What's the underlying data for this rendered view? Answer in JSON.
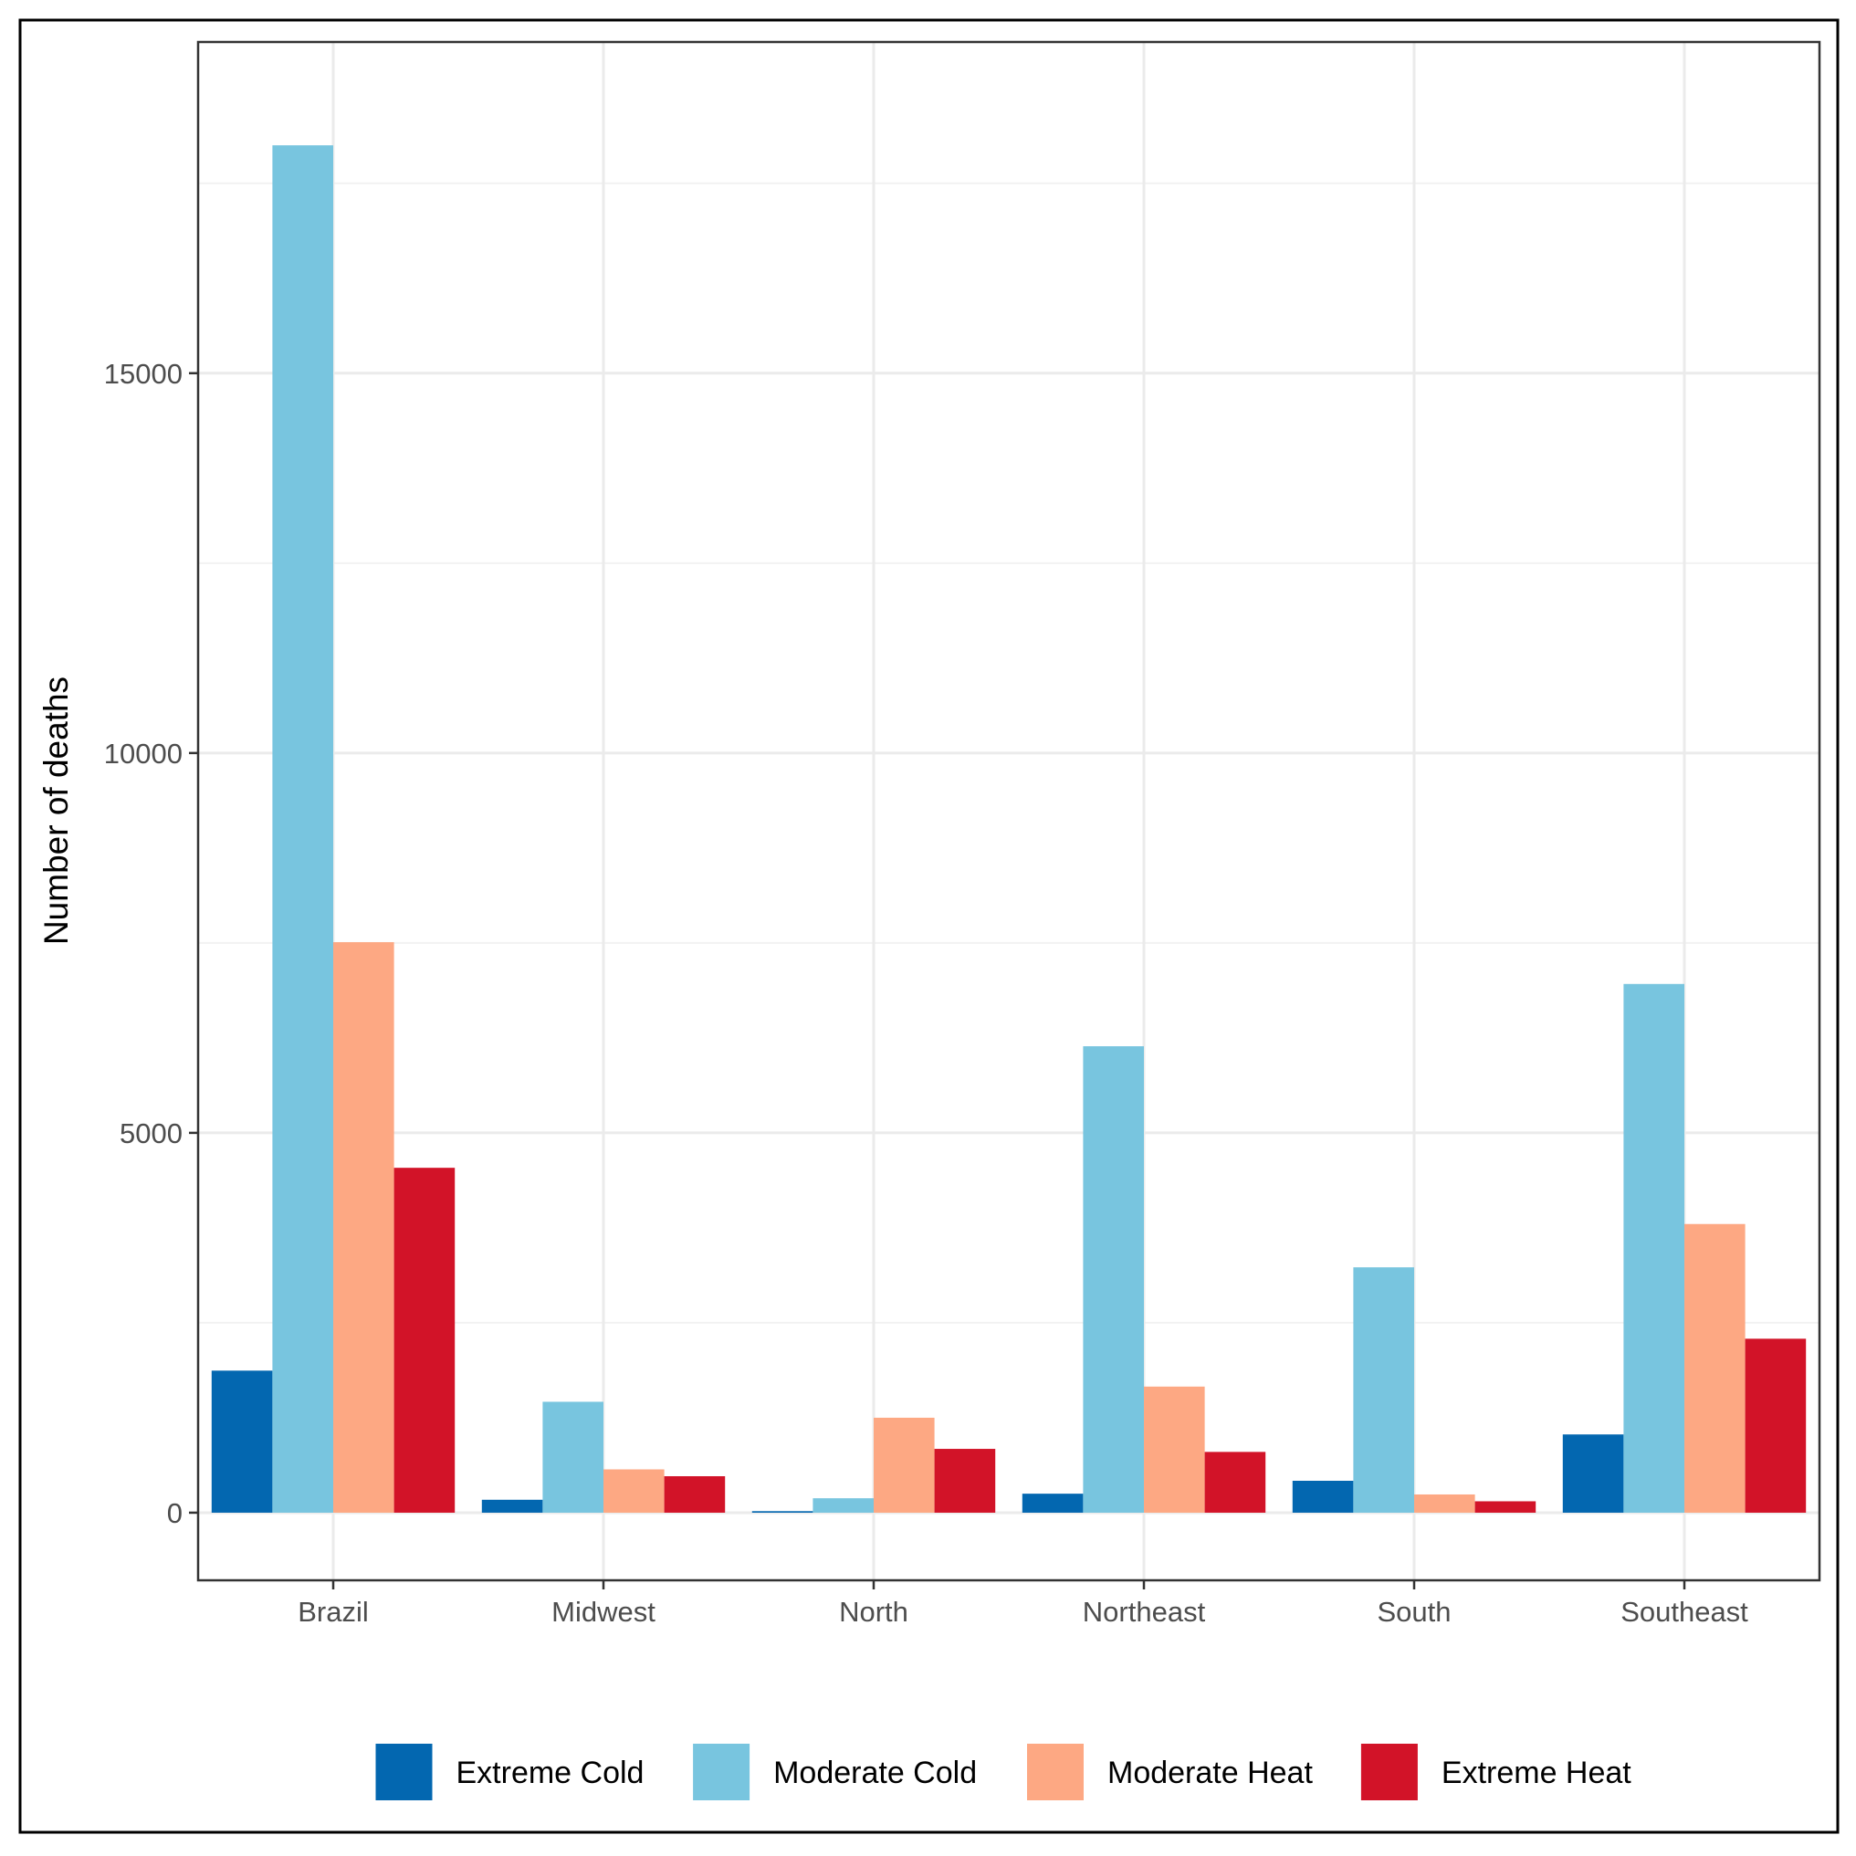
{
  "chart_data": {
    "type": "bar",
    "title": "",
    "xlabel": "",
    "ylabel": "Number of deaths",
    "categories": [
      "Brazil",
      "Midwest",
      "North",
      "Northeast",
      "South",
      "Southeast"
    ],
    "series": [
      {
        "name": "Extreme Cold",
        "color": "#0367b0",
        "values": [
          1870,
          170,
          20,
          250,
          420,
          1030
        ]
      },
      {
        "name": "Moderate Cold",
        "color": "#78c5df",
        "values": [
          18000,
          1460,
          190,
          6140,
          3230,
          6960
        ]
      },
      {
        "name": "Moderate Heat",
        "color": "#fda883",
        "values": [
          7510,
          570,
          1250,
          1660,
          240,
          3800
        ]
      },
      {
        "name": "Extreme Heat",
        "color": "#d21328",
        "values": [
          4540,
          480,
          840,
          800,
          150,
          2290
        ]
      }
    ],
    "yticks": [
      0,
      5000,
      10000,
      15000
    ],
    "ylim": [
      -890,
      19360
    ],
    "grid": true,
    "legend_position": "bottom"
  }
}
